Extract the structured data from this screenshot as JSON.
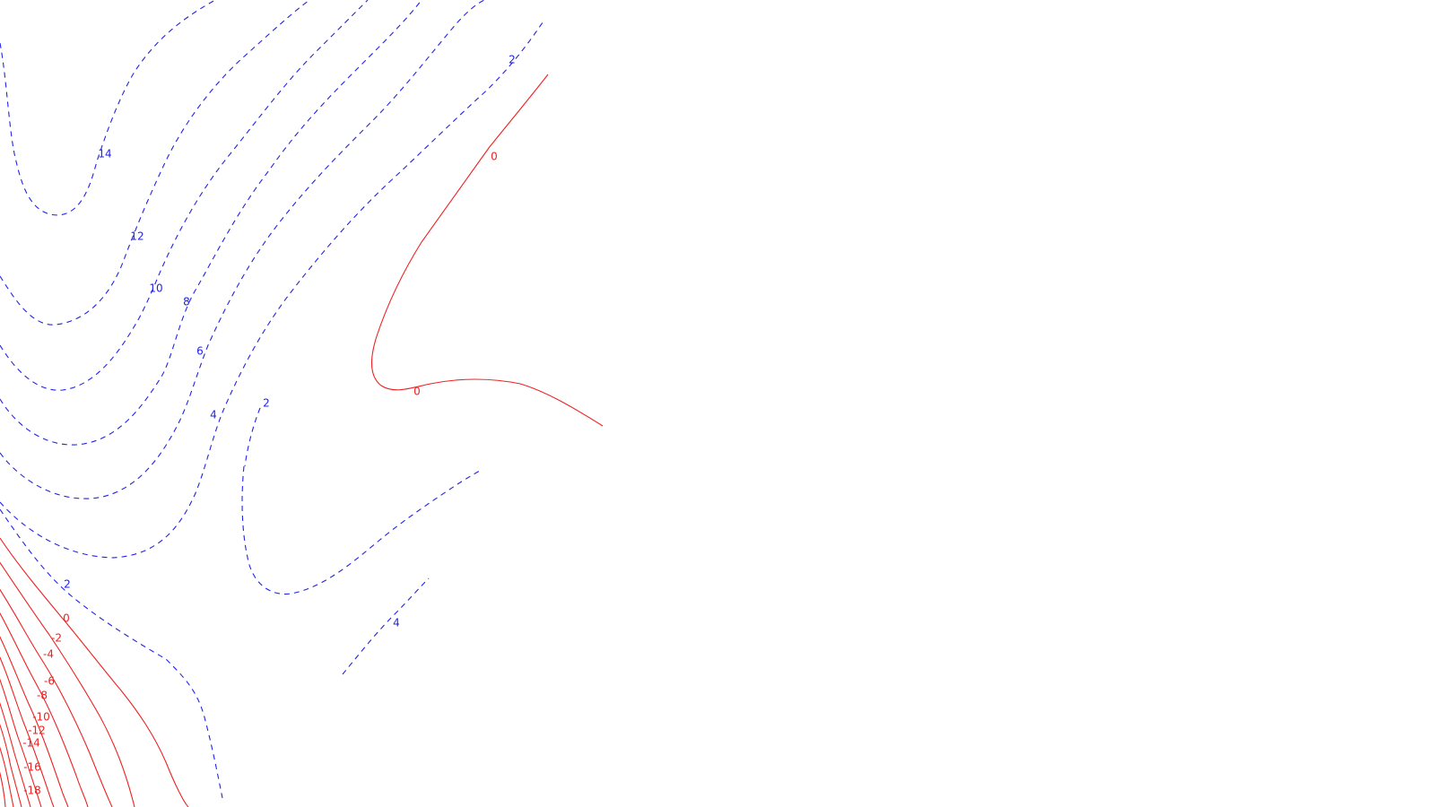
{
  "chart_data": {
    "type": "contour",
    "colors": {
      "positive": "#2323e6",
      "negative": "#ee2222",
      "background": "#ffffff"
    },
    "line_styles": {
      "positive": "dashed",
      "negative": "solid"
    },
    "contours": [
      {
        "level": 14,
        "sign": "positive",
        "label": "14"
      },
      {
        "level": 12,
        "sign": "positive",
        "label": "12"
      },
      {
        "level": 10,
        "sign": "positive",
        "label": "10"
      },
      {
        "level": 8,
        "sign": "positive",
        "label": "8"
      },
      {
        "level": 6,
        "sign": "positive",
        "label": "6"
      },
      {
        "level": 4,
        "sign": "positive",
        "label": "4"
      },
      {
        "level": 2,
        "sign": "positive",
        "label": "2"
      },
      {
        "level": 2,
        "sign": "positive",
        "label": "2"
      },
      {
        "level": 2,
        "sign": "positive",
        "label": "2"
      },
      {
        "level": 4,
        "sign": "positive",
        "label": "4"
      },
      {
        "level": 0,
        "sign": "negative",
        "label": "0"
      },
      {
        "level": 0,
        "sign": "negative",
        "label": "0"
      },
      {
        "level": 0,
        "sign": "negative",
        "label": "0"
      },
      {
        "level": -2,
        "sign": "negative",
        "label": "-2"
      },
      {
        "level": -4,
        "sign": "negative",
        "label": "-4"
      },
      {
        "level": -6,
        "sign": "negative",
        "label": "-6"
      },
      {
        "level": -8,
        "sign": "negative",
        "label": "-8"
      },
      {
        "level": -10,
        "sign": "negative",
        "label": "-10"
      },
      {
        "level": -12,
        "sign": "negative",
        "label": "-12"
      },
      {
        "level": -14,
        "sign": "negative",
        "label": "-14"
      },
      {
        "level": -16,
        "sign": "negative",
        "label": "-16"
      },
      {
        "level": -18,
        "sign": "negative",
        "label": "-18"
      }
    ]
  }
}
